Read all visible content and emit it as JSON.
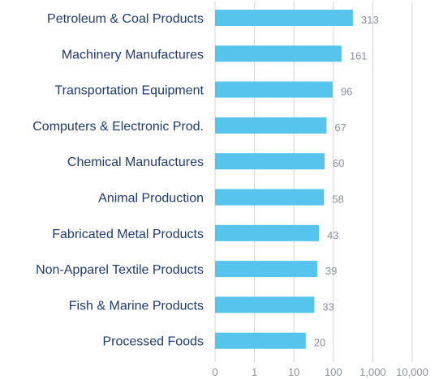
{
  "chart_data": {
    "type": "bar",
    "orientation": "horizontal",
    "x_scale": "log",
    "title": "",
    "xlabel": "",
    "ylabel": "",
    "categories": [
      "Petroleum & Coal Products",
      "Machinery Manufactures",
      "Transportation Equipment",
      "Computers & Electronic Prod.",
      "Chemical Manufactures",
      "Animal Production",
      "Fabricated Metal Products",
      "Non-Apparel Textile Products",
      "Fish & Marine Products",
      "Processed Foods"
    ],
    "values": [
      313,
      161,
      96,
      67,
      60,
      58,
      43,
      39,
      33,
      20
    ],
    "x_ticks": [
      {
        "value": 0,
        "label": "0"
      },
      {
        "value": 1,
        "label": "1"
      },
      {
        "value": 10,
        "label": "10"
      },
      {
        "value": 100,
        "label": "100"
      },
      {
        "value": 1000,
        "label": "1,000"
      },
      {
        "value": 10000,
        "label": "10,000"
      }
    ],
    "grid": true,
    "legend": "none",
    "colors": {
      "bar": "#56c4ec",
      "category_text": "#1f3a6e",
      "value_text": "#8a9099",
      "grid": "#d4d4d4"
    }
  }
}
